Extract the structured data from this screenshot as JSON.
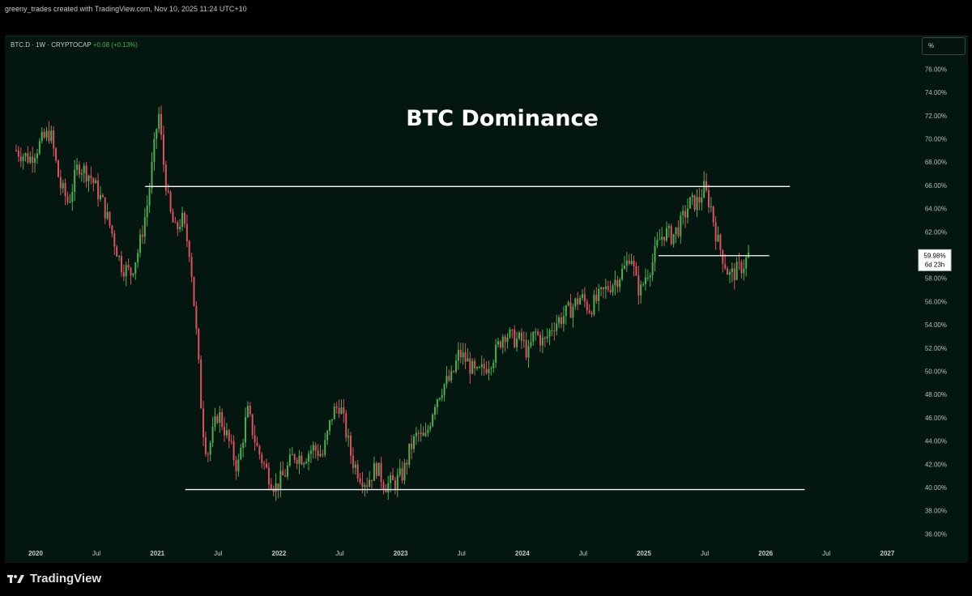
{
  "header": {
    "watermark": "greeny_trades created with TradingView.com, Nov 10, 2025 11:24 UTC+10"
  },
  "legend": {
    "symbol": "BTC.D · 1W · CRYPTOCAP",
    "change": "+0.08 (+0.13%)"
  },
  "unit_selector": "%",
  "price_label": {
    "value": "59.98%",
    "countdown": "6d 23h"
  },
  "footer": {
    "brand": "TradingView"
  },
  "colors": {
    "background": "#031710",
    "up": "#4caf50",
    "down": "#e04f5f",
    "lines": "#ffffff"
  },
  "chart_data": {
    "type": "candlestick",
    "title": "BTC Dominance",
    "xlabel": "",
    "ylabel": "",
    "ylim": [
      35,
      78
    ],
    "xlim": [
      2019.83,
      2027.15
    ],
    "grid": false,
    "y_ticks": [
      "36.00%",
      "38.00%",
      "40.00%",
      "42.00%",
      "44.00%",
      "46.00%",
      "48.00%",
      "50.00%",
      "52.00%",
      "54.00%",
      "56.00%",
      "58.00%",
      "60.00%",
      "62.00%",
      "64.00%",
      "66.00%",
      "68.00%",
      "70.00%",
      "72.00%",
      "74.00%",
      "76.00%"
    ],
    "x_ticks": [
      {
        "label": "2020",
        "t": 2020.0
      },
      {
        "label": "Jul",
        "t": 2020.5
      },
      {
        "label": "2021",
        "t": 2021.0
      },
      {
        "label": "Jul",
        "t": 2021.5
      },
      {
        "label": "2022",
        "t": 2022.0
      },
      {
        "label": "Jul",
        "t": 2022.5
      },
      {
        "label": "2023",
        "t": 2023.0
      },
      {
        "label": "Jul",
        "t": 2023.5
      },
      {
        "label": "2024",
        "t": 2024.0
      },
      {
        "label": "Jul",
        "t": 2024.5
      },
      {
        "label": "2025",
        "t": 2025.0
      },
      {
        "label": "Jul",
        "t": 2025.5
      },
      {
        "label": "2026",
        "t": 2026.0
      },
      {
        "label": "Jul",
        "t": 2026.5
      },
      {
        "label": "2027",
        "t": 2027.0
      }
    ],
    "path_points": [
      [
        2019.84,
        69.0
      ],
      [
        2019.95,
        68.3
      ],
      [
        2020.05,
        69.8
      ],
      [
        2020.12,
        70.6
      ],
      [
        2020.2,
        66.0
      ],
      [
        2020.27,
        64.5
      ],
      [
        2020.35,
        67.8
      ],
      [
        2020.45,
        66.8
      ],
      [
        2020.55,
        64.5
      ],
      [
        2020.62,
        62.2
      ],
      [
        2020.7,
        59.2
      ],
      [
        2020.78,
        58.4
      ],
      [
        2020.85,
        60.6
      ],
      [
        2020.92,
        64.5
      ],
      [
        2020.97,
        68.8
      ],
      [
        2021.01,
        72.4
      ],
      [
        2021.05,
        68.0
      ],
      [
        2021.1,
        63.8
      ],
      [
        2021.15,
        62.0
      ],
      [
        2021.2,
        63.2
      ],
      [
        2021.27,
        60.2
      ],
      [
        2021.33,
        52.0
      ],
      [
        2021.37,
        45.5
      ],
      [
        2021.41,
        42.8
      ],
      [
        2021.46,
        44.8
      ],
      [
        2021.5,
        46.5
      ],
      [
        2021.58,
        44.2
      ],
      [
        2021.66,
        41.6
      ],
      [
        2021.74,
        46.6
      ],
      [
        2021.82,
        43.4
      ],
      [
        2021.9,
        41.4
      ],
      [
        2021.97,
        40.0
      ],
      [
        2022.05,
        41.2
      ],
      [
        2022.12,
        42.8
      ],
      [
        2022.2,
        42.6
      ],
      [
        2022.28,
        43.4
      ],
      [
        2022.36,
        42.8
      ],
      [
        2022.44,
        46.4
      ],
      [
        2022.5,
        47.2
      ],
      [
        2022.55,
        44.8
      ],
      [
        2022.6,
        42.4
      ],
      [
        2022.66,
        41.2
      ],
      [
        2022.72,
        40.4
      ],
      [
        2022.8,
        41.8
      ],
      [
        2022.87,
        40.2
      ],
      [
        2022.95,
        40.4
      ],
      [
        2023.02,
        41.2
      ],
      [
        2023.08,
        43.4
      ],
      [
        2023.14,
        44.6
      ],
      [
        2023.2,
        44.0
      ],
      [
        2023.28,
        47.4
      ],
      [
        2023.35,
        48.8
      ],
      [
        2023.42,
        49.4
      ],
      [
        2023.48,
        51.6
      ],
      [
        2023.55,
        50.8
      ],
      [
        2023.62,
        49.6
      ],
      [
        2023.7,
        50.4
      ],
      [
        2023.78,
        51.6
      ],
      [
        2023.85,
        53.4
      ],
      [
        2023.92,
        52.8
      ],
      [
        2024.0,
        52.6
      ],
      [
        2024.05,
        51.4
      ],
      [
        2024.1,
        53.4
      ],
      [
        2024.18,
        52.4
      ],
      [
        2024.25,
        54.0
      ],
      [
        2024.32,
        54.6
      ],
      [
        2024.4,
        55.4
      ],
      [
        2024.48,
        56.4
      ],
      [
        2024.55,
        55.4
      ],
      [
        2024.62,
        56.2
      ],
      [
        2024.7,
        57.2
      ],
      [
        2024.78,
        58.0
      ],
      [
        2024.85,
        59.0
      ],
      [
        2024.89,
        60.4
      ],
      [
        2024.93,
        57.8
      ],
      [
        2024.97,
        56.8
      ],
      [
        2025.02,
        58.4
      ],
      [
        2025.07,
        59.4
      ],
      [
        2025.12,
        61.2
      ],
      [
        2025.17,
        62.0
      ],
      [
        2025.23,
        61.6
      ],
      [
        2025.3,
        62.6
      ],
      [
        2025.37,
        64.4
      ],
      [
        2025.45,
        64.6
      ],
      [
        2025.49,
        65.8
      ],
      [
        2025.55,
        64.2
      ],
      [
        2025.6,
        61.4
      ],
      [
        2025.65,
        59.8
      ],
      [
        2025.7,
        58.2
      ],
      [
        2025.76,
        58.6
      ],
      [
        2025.82,
        59.2
      ],
      [
        2025.86,
        59.98
      ]
    ],
    "horizontal_lines": [
      {
        "price": 65.9,
        "from": 2020.9,
        "to": 2026.2
      },
      {
        "price": 59.95,
        "from": 2025.12,
        "to": 2026.03
      },
      {
        "price": 39.82,
        "from": 2021.23,
        "to": 2026.32
      }
    ],
    "last_value": 59.98
  }
}
